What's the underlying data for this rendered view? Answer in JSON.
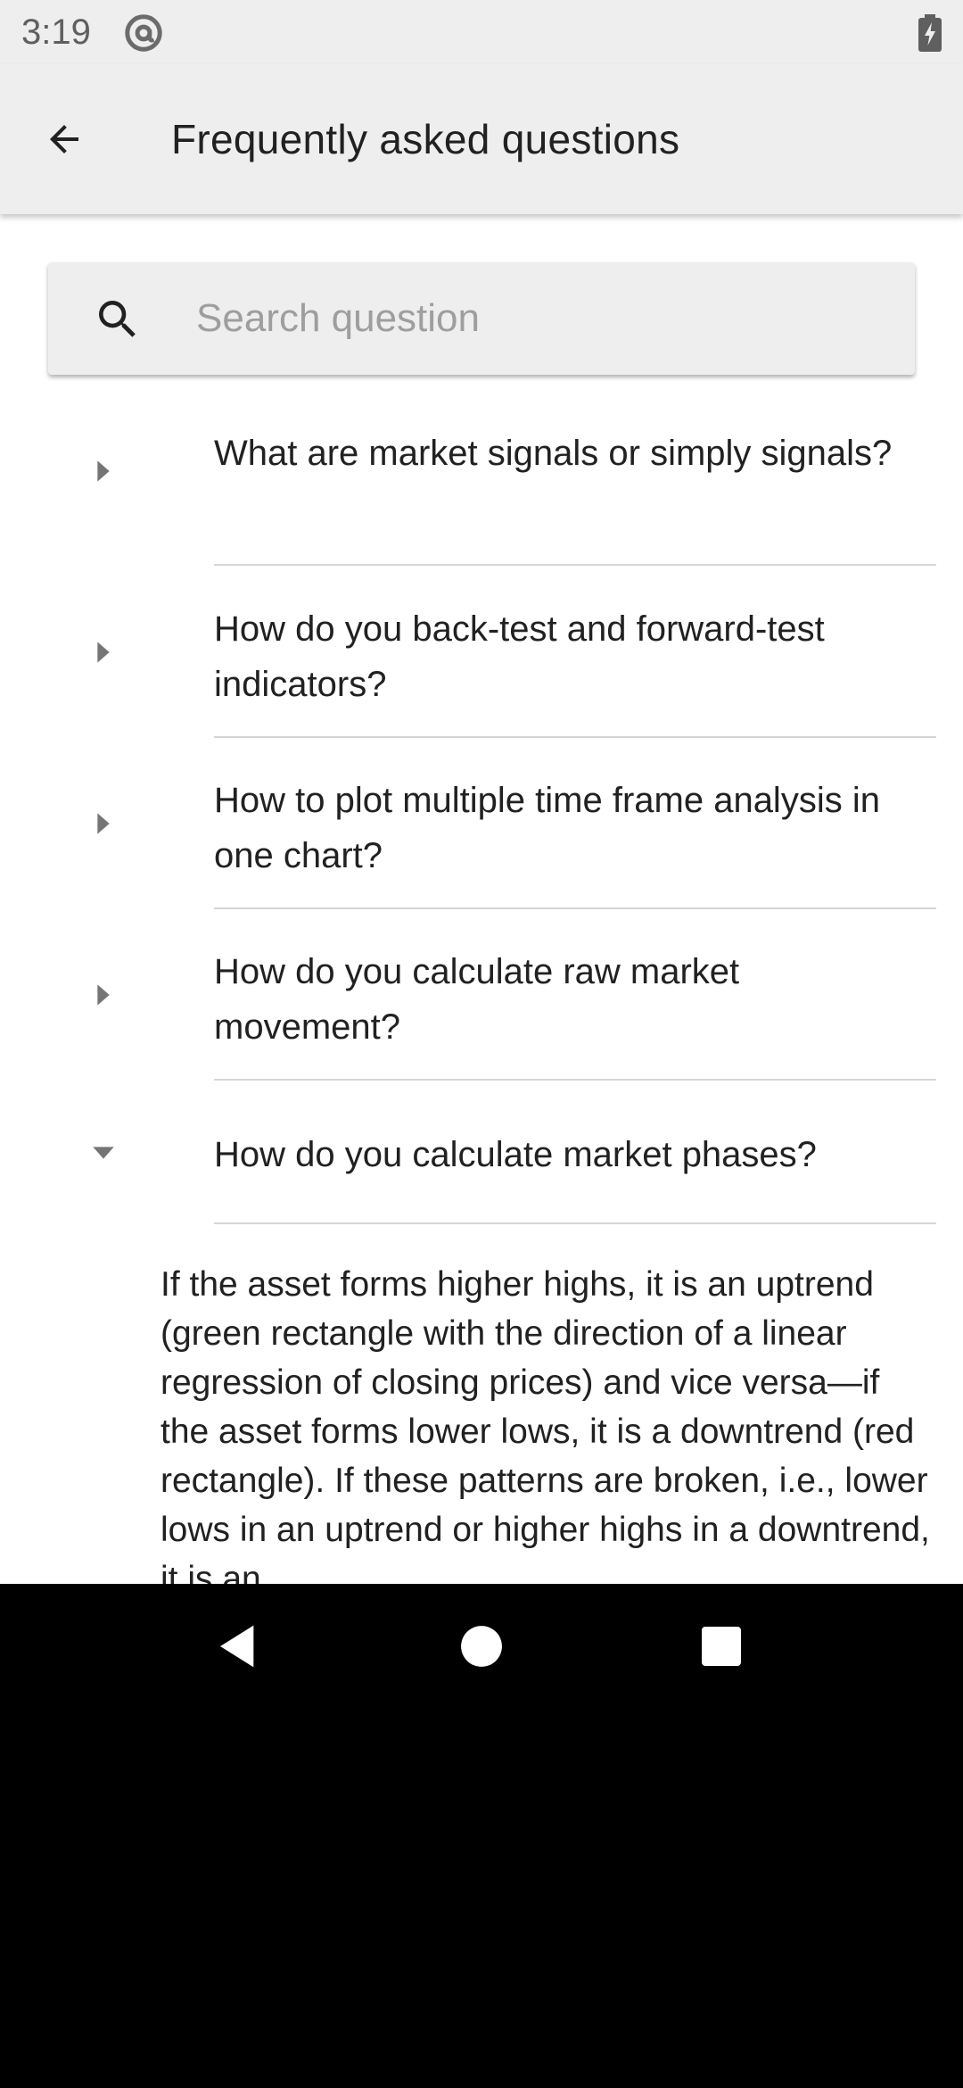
{
  "status_bar": {
    "time": "3:19",
    "icons": [
      "at-sign-icon",
      "battery-charging-icon"
    ]
  },
  "app_bar": {
    "back_icon": "arrow-back-icon",
    "title": "Frequently asked questions"
  },
  "search": {
    "icon": "search-icon",
    "placeholder": "Search question",
    "value": ""
  },
  "faq": {
    "items": [
      {
        "question": "What are market signals or simply signals?",
        "expanded": false
      },
      {
        "question": "How do you back-test and forward-test indicators?",
        "expanded": false
      },
      {
        "question": "How to plot multiple time frame analysis in one chart?",
        "expanded": false
      },
      {
        "question": "How do you calculate raw market movement?",
        "expanded": false
      },
      {
        "question": "How do you calculate market phases?",
        "expanded": true
      }
    ],
    "answer": "If the asset forms higher highs, it is an uptrend (green rectangle with the direction of a linear regression of closing prices) and vice versa—if the asset forms lower lows, it is a downtrend (red rectangle). If these patterns are broken, i.e., lower lows in an uptrend or higher highs in a downtrend, it is an"
  },
  "nav_bar": {
    "icons": [
      "nav-back-icon",
      "nav-home-icon",
      "nav-recents-icon"
    ]
  },
  "colors": {
    "bar_background": "#eeeeee",
    "text_primary": "#212121",
    "placeholder": "#9e9e9e",
    "divider": "#d6d6d6",
    "arrow": "#757575"
  }
}
